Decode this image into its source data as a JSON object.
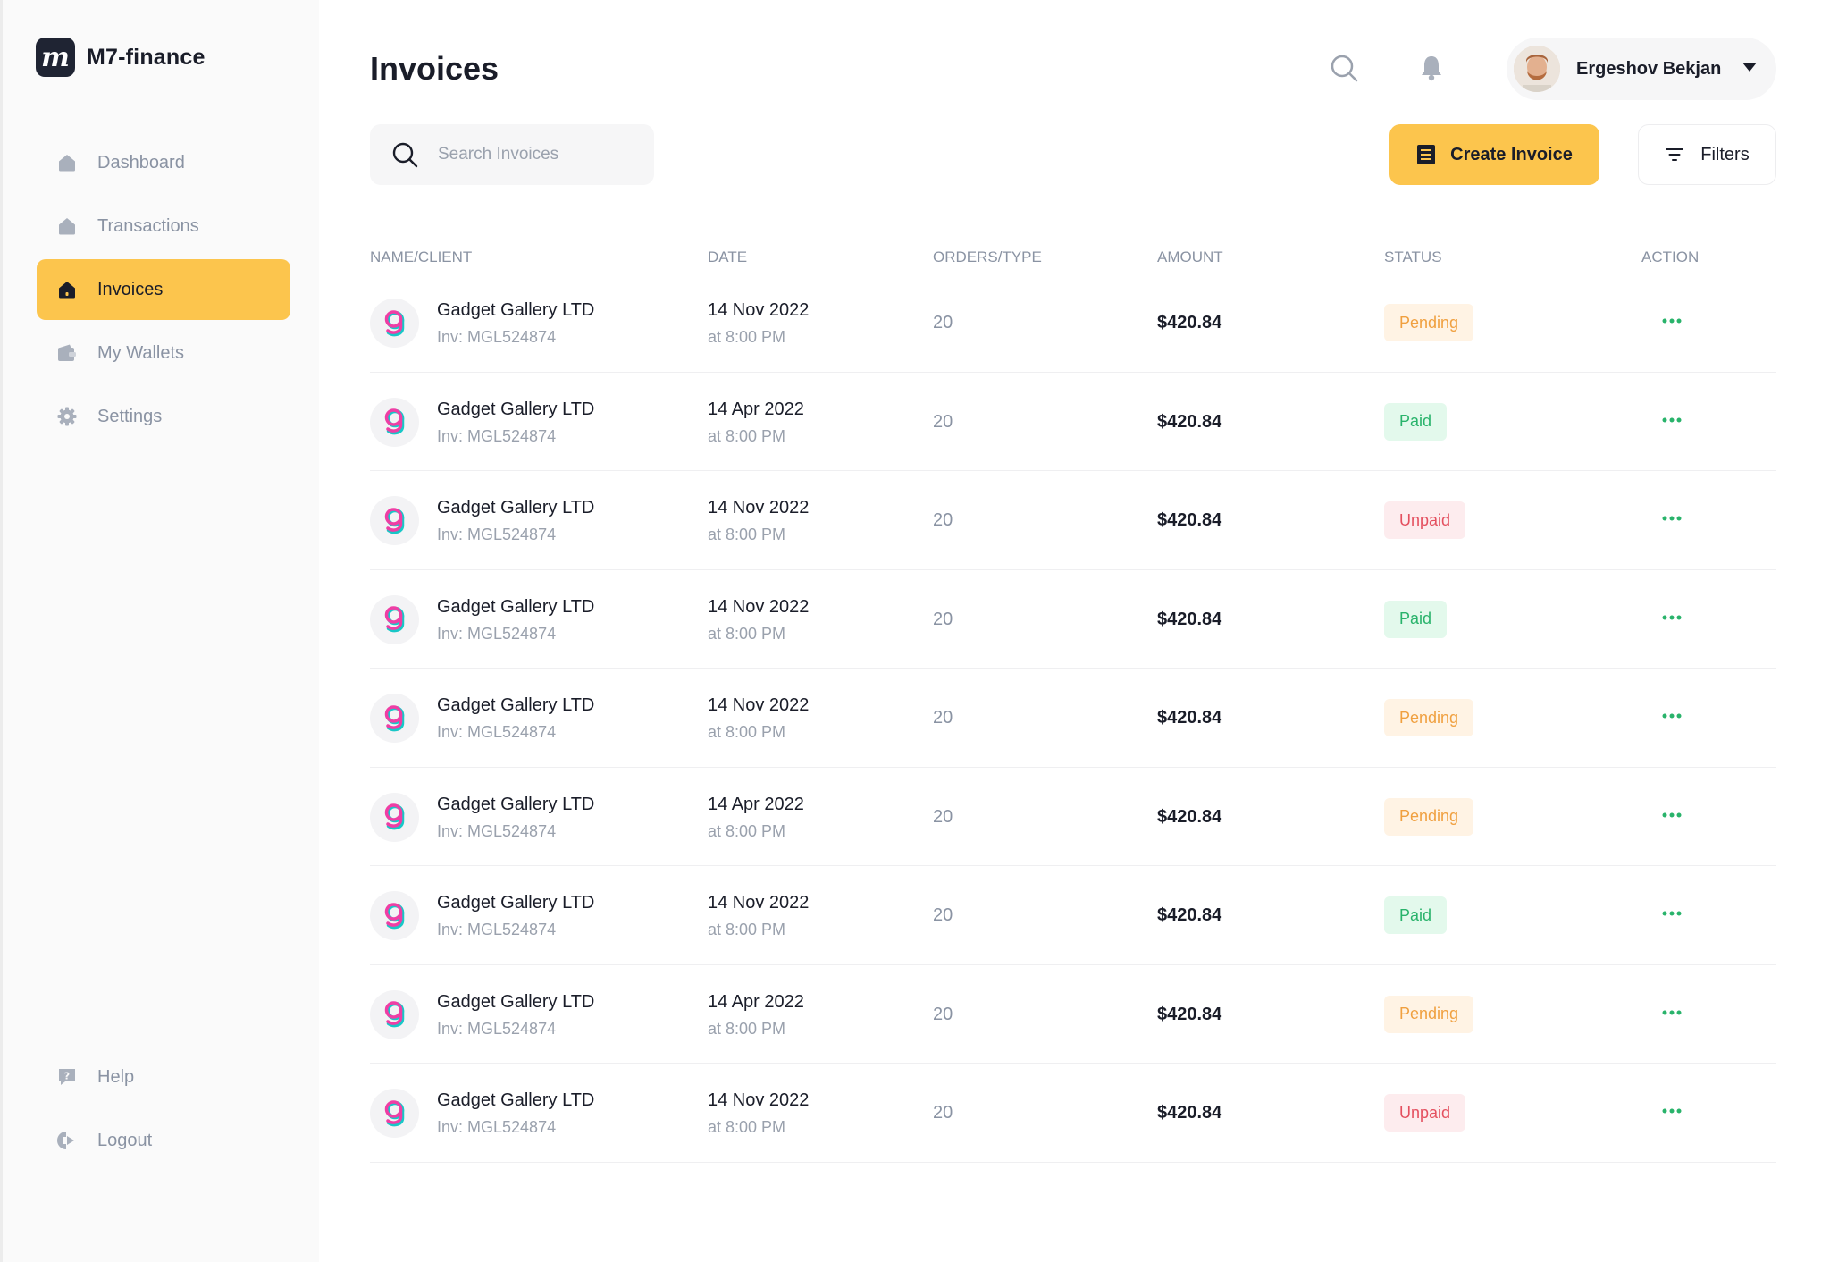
{
  "brand": {
    "name": "M7-finance",
    "logo_letter": "m"
  },
  "sidebar": {
    "items": [
      {
        "label": "Dashboard",
        "icon": "home-icon",
        "active": false
      },
      {
        "label": "Transactions",
        "icon": "home-icon",
        "active": false
      },
      {
        "label": "Invoices",
        "icon": "home-icon",
        "active": true
      },
      {
        "label": "My Wallets",
        "icon": "wallet-icon",
        "active": false
      },
      {
        "label": "Settings",
        "icon": "gear-icon",
        "active": false
      }
    ],
    "bottom": [
      {
        "label": "Help",
        "icon": "help-icon"
      },
      {
        "label": "Logout",
        "icon": "logout-icon"
      }
    ]
  },
  "header": {
    "title": "Invoices",
    "user": {
      "name": "Ergeshov Bekjan"
    }
  },
  "toolbar": {
    "search_placeholder": "Search Invoices",
    "search_value": "",
    "create_label": "Create Invoice",
    "filters_label": "Filters"
  },
  "table": {
    "columns": [
      "NAME/CLIENT",
      "DATE",
      "ORDERS/TYPE",
      "AMOUNT",
      "STATUS",
      "ACTION"
    ],
    "rows": [
      {
        "client": "Gadget Gallery LTD",
        "invoice": "Inv: MGL524874",
        "date": "14 Nov 2022",
        "time": "at 8:00 PM",
        "orders": "20",
        "amount": "$420.84",
        "status": "Pending"
      },
      {
        "client": "Gadget Gallery LTD",
        "invoice": "Inv: MGL524874",
        "date": "14 Apr 2022",
        "time": "at 8:00 PM",
        "orders": "20",
        "amount": "$420.84",
        "status": "Paid"
      },
      {
        "client": "Gadget Gallery LTD",
        "invoice": "Inv: MGL524874",
        "date": "14 Nov 2022",
        "time": "at 8:00 PM",
        "orders": "20",
        "amount": "$420.84",
        "status": "Unpaid"
      },
      {
        "client": "Gadget Gallery LTD",
        "invoice": "Inv: MGL524874",
        "date": "14 Nov 2022",
        "time": "at 8:00 PM",
        "orders": "20",
        "amount": "$420.84",
        "status": "Paid"
      },
      {
        "client": "Gadget Gallery LTD",
        "invoice": "Inv: MGL524874",
        "date": "14 Nov 2022",
        "time": "at 8:00 PM",
        "orders": "20",
        "amount": "$420.84",
        "status": "Pending"
      },
      {
        "client": "Gadget Gallery LTD",
        "invoice": "Inv: MGL524874",
        "date": "14 Apr 2022",
        "time": "at 8:00 PM",
        "orders": "20",
        "amount": "$420.84",
        "status": "Pending"
      },
      {
        "client": "Gadget Gallery LTD",
        "invoice": "Inv: MGL524874",
        "date": "14 Nov 2022",
        "time": "at 8:00 PM",
        "orders": "20",
        "amount": "$420.84",
        "status": "Paid"
      },
      {
        "client": "Gadget Gallery LTD",
        "invoice": "Inv: MGL524874",
        "date": "14 Apr 2022",
        "time": "at 8:00 PM",
        "orders": "20",
        "amount": "$420.84",
        "status": "Pending"
      },
      {
        "client": "Gadget Gallery LTD",
        "invoice": "Inv: MGL524874",
        "date": "14 Nov 2022",
        "time": "at 8:00 PM",
        "orders": "20",
        "amount": "$420.84",
        "status": "Unpaid"
      }
    ]
  },
  "colors": {
    "accent": "#fcc54d",
    "pending_text": "#f0a040",
    "pending_bg": "#fff3e4",
    "paid_text": "#29b36b",
    "paid_bg": "#e3f9ec",
    "unpaid_text": "#e4505f",
    "unpaid_bg": "#fdecee"
  }
}
